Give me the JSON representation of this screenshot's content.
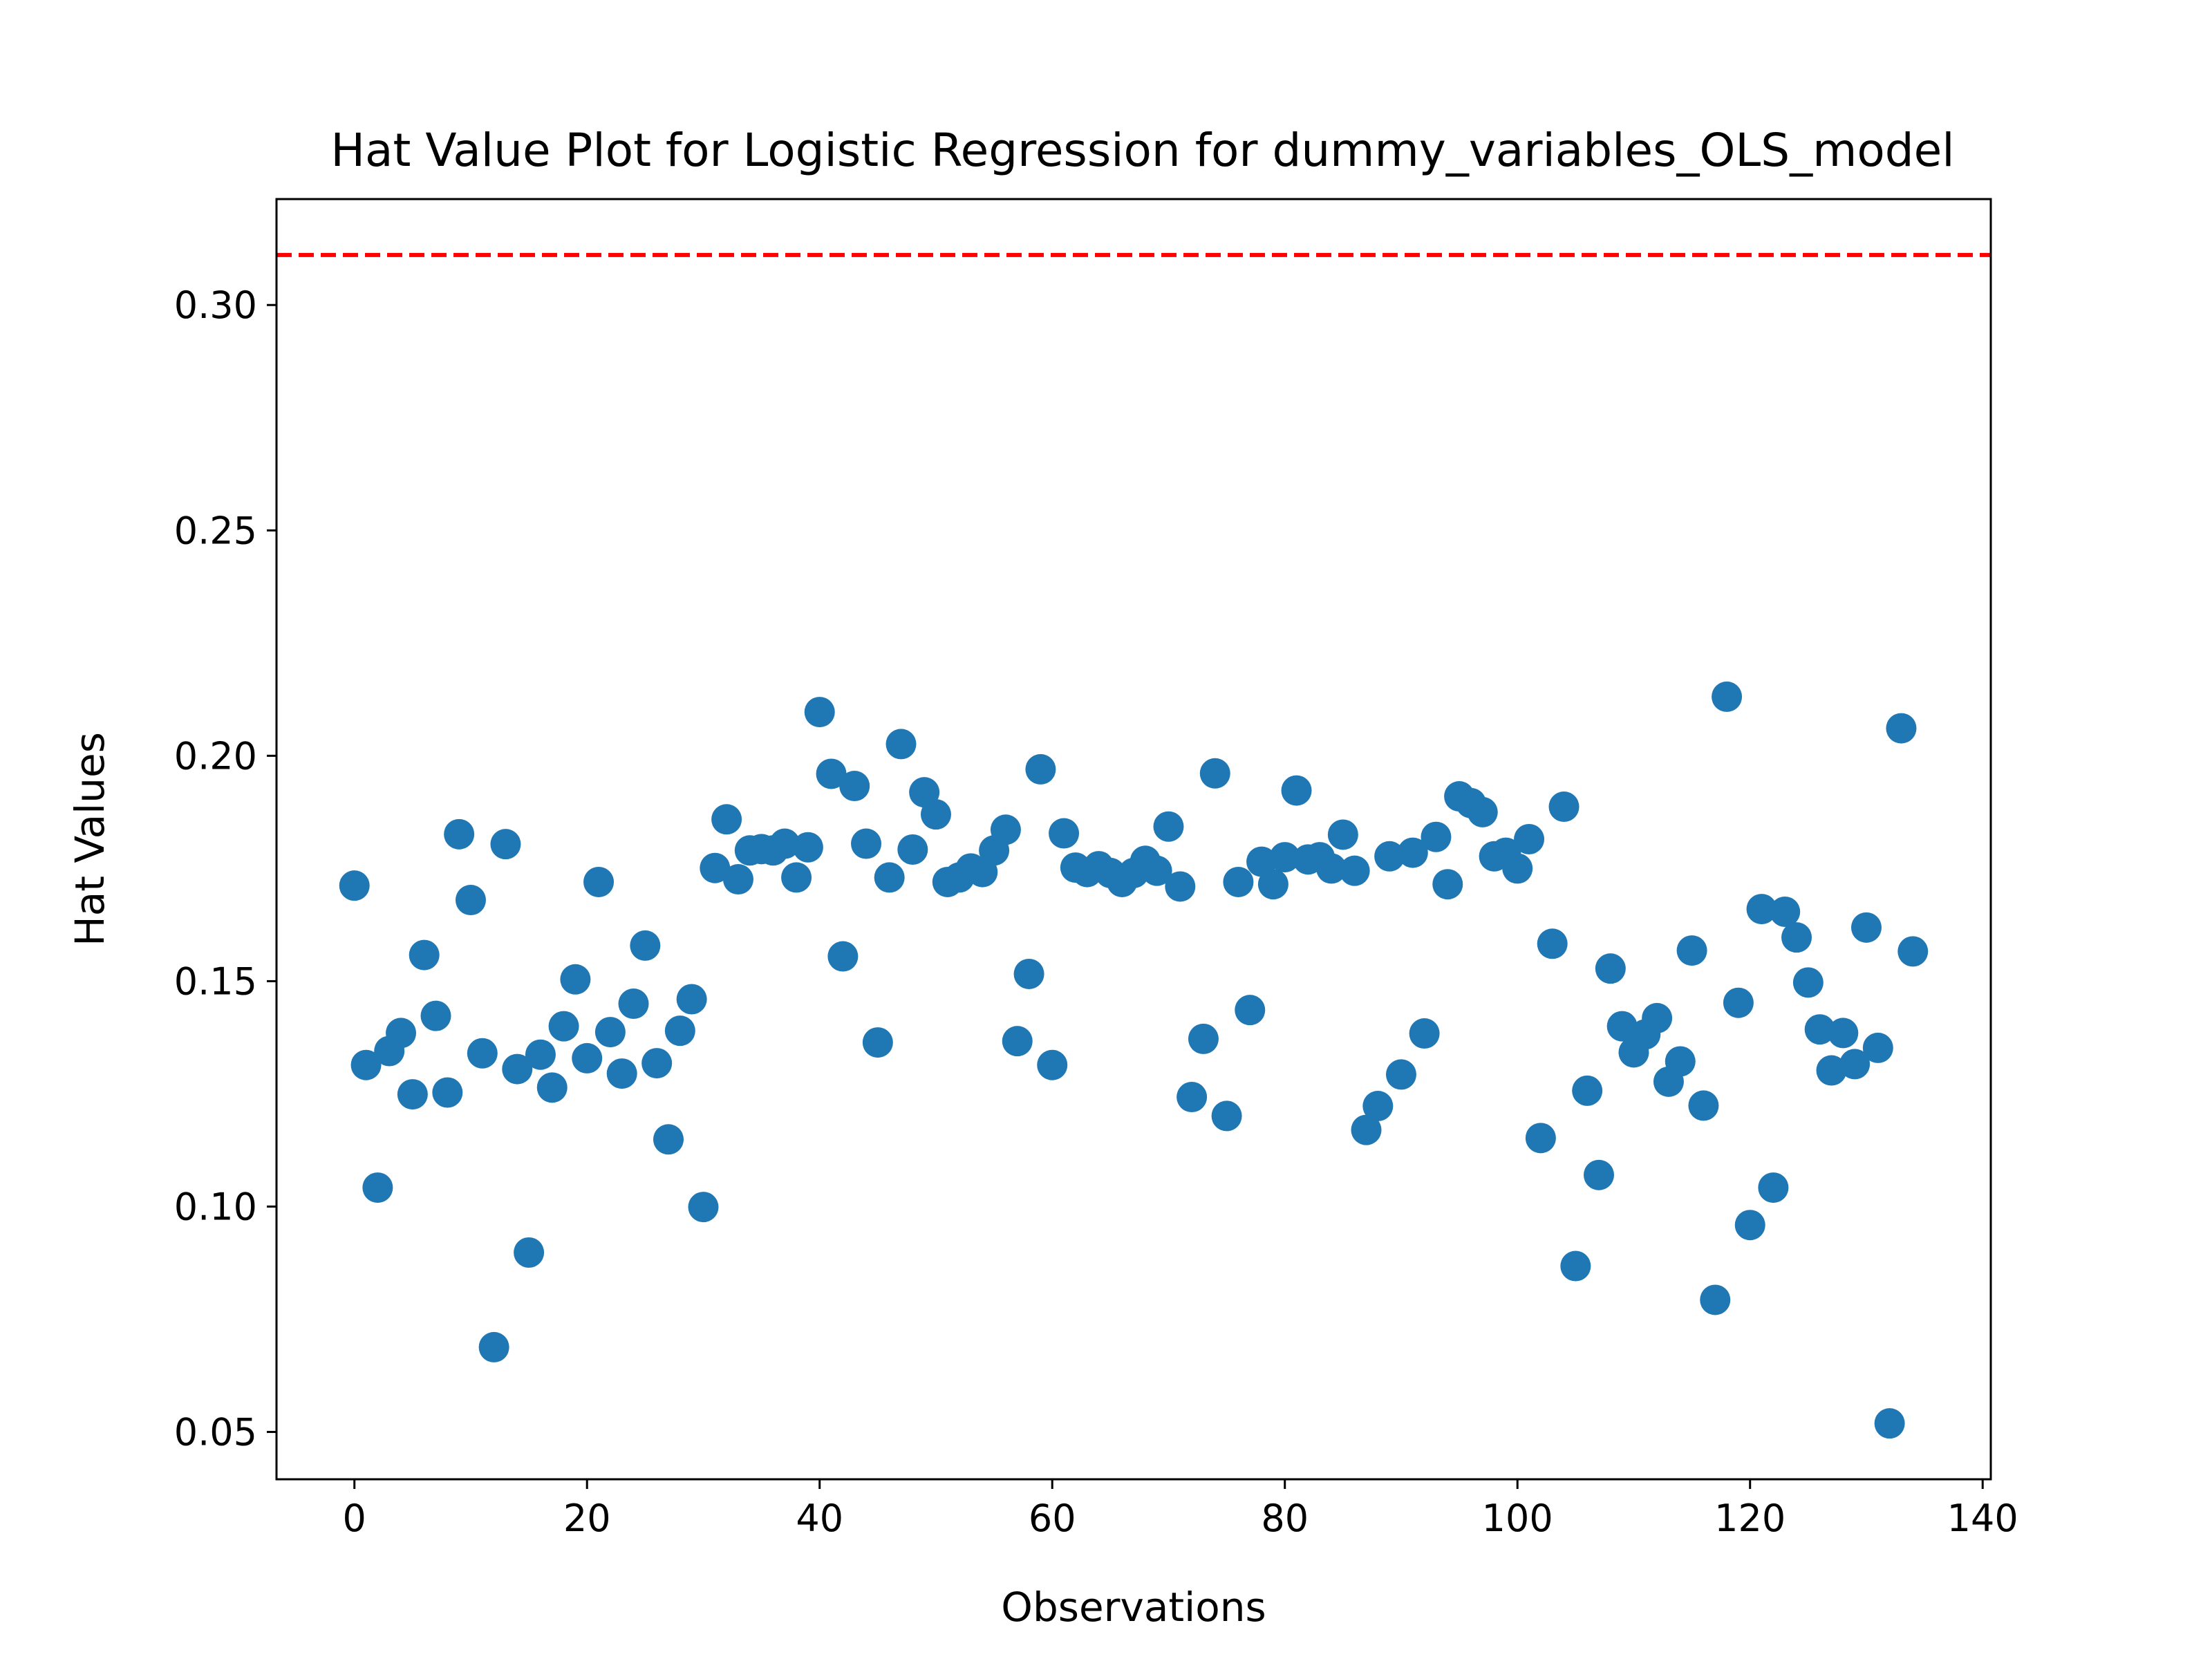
{
  "chart_data": {
    "type": "scatter",
    "title": "Hat Value Plot for Logistic Regression for dummy_variables_OLS_model",
    "xlabel": "Observations",
    "ylabel": "Hat Values",
    "xlim": [
      -6.7,
      140.7
    ],
    "ylim": [
      0.0395,
      0.3235
    ],
    "xticks": [
      0,
      20,
      40,
      60,
      80,
      100,
      120,
      140
    ],
    "xtick_labels": [
      "0",
      "20",
      "40",
      "60",
      "80",
      "100",
      "120",
      "140"
    ],
    "yticks": [
      0.05,
      0.1,
      0.15,
      0.2,
      0.25,
      0.3
    ],
    "ytick_labels": [
      "0.05",
      "0.10",
      "0.15",
      "0.20",
      "0.25",
      "0.30"
    ],
    "grid": false,
    "marker_color": "#1f77b4",
    "threshold_line": {
      "y": 0.3111,
      "color": "#ff0000",
      "style": "dashed"
    },
    "x": [
      0,
      1,
      2,
      3,
      4,
      5,
      6,
      7,
      8,
      9,
      10,
      11,
      12,
      13,
      14,
      15,
      16,
      17,
      18,
      19,
      20,
      21,
      22,
      23,
      24,
      25,
      26,
      27,
      28,
      29,
      30,
      31,
      32,
      33,
      34,
      35,
      36,
      37,
      38,
      39,
      40,
      41,
      42,
      43,
      44,
      45,
      46,
      47,
      48,
      49,
      50,
      51,
      52,
      53,
      54,
      55,
      56,
      57,
      58,
      59,
      60,
      61,
      62,
      63,
      64,
      65,
      66,
      67,
      68,
      69,
      70,
      71,
      72,
      73,
      74,
      75,
      76,
      77,
      78,
      79,
      80,
      81,
      82,
      83,
      84,
      85,
      86,
      87,
      88,
      89,
      90,
      91,
      92,
      93,
      94,
      95,
      96,
      97,
      98,
      99,
      100,
      101,
      102,
      103,
      104,
      105,
      106,
      107,
      108,
      109,
      110,
      111,
      112,
      113,
      114,
      115,
      116,
      117,
      118,
      119,
      120,
      121,
      122,
      123,
      124,
      125,
      126,
      127,
      128,
      129,
      130,
      131,
      132,
      133,
      134
    ],
    "y": [
      0.1712,
      0.1314,
      0.1042,
      0.1345,
      0.1385,
      0.1249,
      0.1558,
      0.1423,
      0.1253,
      0.1826,
      0.168,
      0.134,
      0.0688,
      0.1804,
      0.1305,
      0.0898,
      0.1337,
      0.1264,
      0.14,
      0.1504,
      0.1329,
      0.172,
      0.1387,
      0.1295,
      0.145,
      0.1579,
      0.1318,
      0.1149,
      0.139,
      0.146,
      0.0999,
      0.1751,
      0.1859,
      0.1726,
      0.179,
      0.1793,
      0.179,
      0.1805,
      0.173,
      0.1797,
      0.2097,
      0.196,
      0.1555,
      0.1933,
      0.1805,
      0.1364,
      0.173,
      0.2026,
      0.1792,
      0.1919,
      0.187,
      0.172,
      0.173,
      0.175,
      0.1742,
      0.179,
      0.1836,
      0.1367,
      0.1516,
      0.197,
      0.1314,
      0.1828,
      0.1752,
      0.1742,
      0.1755,
      0.174,
      0.172,
      0.174,
      0.1767,
      0.1745,
      0.1843,
      0.171,
      0.1243,
      0.1372,
      0.1961,
      0.1201,
      0.172,
      0.1436,
      0.1765,
      0.1715,
      0.1775,
      0.1923,
      0.177,
      0.1775,
      0.175,
      0.1825,
      0.1745,
      0.117,
      0.1223,
      0.1777,
      0.1293,
      0.1785,
      0.1384,
      0.182,
      0.1715,
      0.191,
      0.1895,
      0.1875,
      0.1777,
      0.1785,
      0.175,
      0.1815,
      0.1152,
      0.1583,
      0.1887,
      0.0868,
      0.1257,
      0.107,
      0.1528,
      0.14,
      0.1342,
      0.1382,
      0.1418,
      0.1277,
      0.1322,
      0.1568,
      0.1224,
      0.0793,
      0.2131,
      0.1452,
      0.0959,
      0.166,
      0.1042,
      0.1654,
      0.1597,
      0.1497,
      0.1393,
      0.1302,
      0.1385,
      0.1316,
      0.1619,
      0.1352,
      0.0519,
      0.2061,
      0.1566
    ]
  }
}
